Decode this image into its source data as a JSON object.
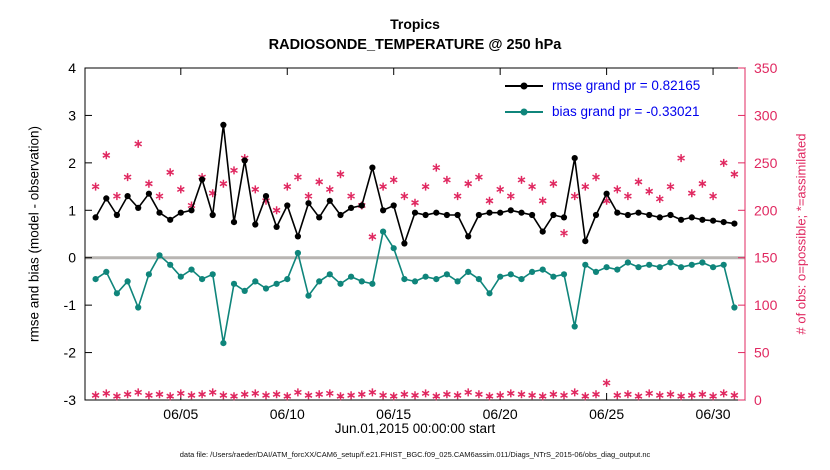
{
  "footer": "data file: /Users/raeder/DAI/ATM_forcXX/CAM6_setup/f.e21.FHIST_BGC.f09_025.CAM6assim.011/Diags_NTrS_2015-06/obs_diag_output.nc",
  "colors": {
    "legend_text": "#0000ee",
    "axis_left": "#000000",
    "axis_right": "#e02860",
    "zero_line": "#b8b5b2"
  },
  "chart_data": {
    "type": "line",
    "title": "Tropics",
    "subtitle": "RADIOSONDE_TEMPERATURE @ 250 hPa",
    "xlabel": "Jun.01,2015 00:00:00 start",
    "ylabel_left": "rmse and bias (model - observation)",
    "ylabel_right": "# of obs: o=possible; *=assimilated",
    "x_range": [
      0.5,
      31.5
    ],
    "ylim_left": [
      -3,
      4
    ],
    "ylim_right": [
      0,
      350
    ],
    "left_ticks": [
      -3,
      -2,
      -1,
      0,
      1,
      2,
      3,
      4
    ],
    "right_ticks": [
      0,
      50,
      100,
      150,
      200,
      250,
      300,
      350
    ],
    "x_ticks": [
      {
        "day": 5,
        "label": "06/05"
      },
      {
        "day": 10,
        "label": "06/10"
      },
      {
        "day": 15,
        "label": "06/15"
      },
      {
        "day": 20,
        "label": "06/20"
      },
      {
        "day": 25,
        "label": "06/25"
      },
      {
        "day": 30,
        "label": "06/30"
      }
    ],
    "zero_line": {
      "value": 0,
      "color": "#b8b5b2"
    },
    "stats": {
      "rmse_grand_pr": 0.82165,
      "bias_grand_pr": -0.33021
    },
    "legend": [
      {
        "label": "rmse grand pr = 0.82165",
        "series": "rmse"
      },
      {
        "label": "bias grand pr = -0.33021",
        "series": "bias"
      }
    ],
    "x_days": [
      1,
      1.5,
      2,
      2.5,
      3,
      3.5,
      4,
      4.5,
      5,
      5.5,
      6,
      6.5,
      7,
      7.5,
      8,
      8.5,
      9,
      9.5,
      10,
      10.5,
      11,
      11.5,
      12,
      12.5,
      13,
      13.5,
      14,
      14.5,
      15,
      15.5,
      16,
      16.5,
      17,
      17.5,
      18,
      18.5,
      19,
      19.5,
      20,
      20.5,
      21,
      21.5,
      22,
      22.5,
      23,
      23.5,
      24,
      24.5,
      25,
      25.5,
      26,
      26.5,
      27,
      27.5,
      28,
      28.5,
      29,
      29.5,
      30,
      30.5,
      31
    ],
    "series": [
      {
        "name": "rmse",
        "axis": "left",
        "color": "#000000",
        "marker": "circle",
        "values": [
          0.85,
          1.25,
          0.9,
          1.3,
          1.05,
          1.35,
          0.95,
          0.8,
          0.95,
          1.0,
          1.65,
          0.9,
          2.8,
          0.75,
          2.05,
          0.7,
          1.3,
          0.65,
          1.1,
          0.45,
          1.15,
          0.85,
          1.2,
          0.9,
          1.05,
          1.1,
          1.9,
          1.0,
          1.1,
          0.3,
          0.95,
          0.9,
          0.95,
          0.9,
          0.9,
          0.45,
          0.9,
          0.95,
          0.95,
          1.0,
          0.95,
          0.9,
          0.55,
          0.9,
          0.85,
          2.1,
          0.35,
          0.9,
          1.35,
          0.95,
          0.9,
          0.95,
          0.9,
          0.85,
          0.9,
          0.8,
          0.85,
          0.8,
          0.78,
          0.75,
          0.72
        ]
      },
      {
        "name": "bias",
        "axis": "left",
        "color": "#0f857b",
        "marker": "circle",
        "values": [
          -0.45,
          -0.3,
          -0.75,
          -0.5,
          -1.05,
          -0.35,
          0.05,
          -0.15,
          -0.4,
          -0.25,
          -0.45,
          -0.35,
          -1.8,
          -0.55,
          -0.7,
          -0.5,
          -0.65,
          -0.55,
          -0.45,
          0.1,
          -0.8,
          -0.5,
          -0.35,
          -0.55,
          -0.4,
          -0.5,
          -0.55,
          0.55,
          0.2,
          -0.45,
          -0.5,
          -0.4,
          -0.45,
          -0.35,
          -0.5,
          -0.3,
          -0.45,
          -0.75,
          -0.4,
          -0.35,
          -0.45,
          -0.3,
          -0.25,
          -0.4,
          -0.35,
          -1.45,
          -0.15,
          -0.3,
          -0.2,
          -0.25,
          -0.1,
          -0.2,
          -0.15,
          -0.2,
          -0.1,
          -0.2,
          -0.15,
          -0.1,
          -0.2,
          -0.15,
          -1.05
        ]
      },
      {
        "name": "possible_obs",
        "axis": "right",
        "color": "#e02860",
        "marker": "asterisk",
        "values": [
          225,
          258,
          215,
          235,
          270,
          228,
          215,
          240,
          222,
          205,
          235,
          218,
          228,
          242,
          255,
          222,
          210,
          200,
          225,
          235,
          215,
          230,
          222,
          238,
          215,
          205,
          172,
          225,
          232,
          215,
          208,
          225,
          245,
          232,
          215,
          228,
          235,
          210,
          222,
          215,
          232,
          225,
          210,
          228,
          176,
          215,
          225,
          235,
          210,
          222,
          215,
          230,
          220,
          212,
          225,
          255,
          218,
          228,
          215,
          250,
          238
        ]
      },
      {
        "name": "assimilated_obs",
        "axis": "right",
        "color": "#e02860",
        "marker": "asterisk",
        "values": [
          5,
          7,
          4,
          6,
          8,
          5,
          6,
          4,
          7,
          5,
          6,
          8,
          5,
          4,
          6,
          7,
          5,
          6,
          4,
          8,
          5,
          6,
          7,
          4,
          5,
          6,
          8,
          5,
          4,
          6,
          5,
          7,
          4,
          6,
          5,
          8,
          6,
          4,
          5,
          7,
          6,
          5,
          4,
          6,
          5,
          8,
          4,
          6,
          18,
          5,
          6,
          4,
          7,
          5,
          6,
          4,
          5,
          6,
          4,
          7,
          5
        ]
      }
    ]
  }
}
